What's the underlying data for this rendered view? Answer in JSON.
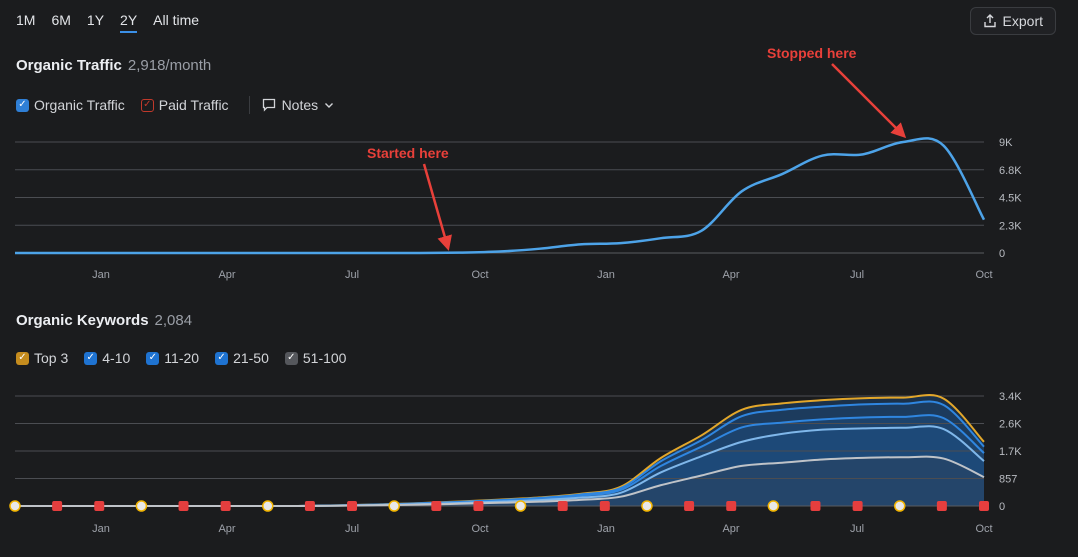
{
  "range_tabs": [
    {
      "label": "1M",
      "active": false
    },
    {
      "label": "6M",
      "active": false
    },
    {
      "label": "1Y",
      "active": false
    },
    {
      "label": "2Y",
      "active": true
    },
    {
      "label": "All time",
      "active": false
    }
  ],
  "export_label": "Export",
  "traffic": {
    "title": "Organic Traffic",
    "metric": "2,918/month",
    "legend": [
      {
        "label": "Organic Traffic",
        "color": "#2f7fd6"
      },
      {
        "label": "Paid Traffic",
        "color": "#c0392b"
      }
    ],
    "notes_label": "Notes",
    "annotations": {
      "started": "Started here",
      "stopped": "Stopped here"
    }
  },
  "keywords": {
    "title": "Organic Keywords",
    "metric": "2,084",
    "legend": [
      {
        "label": "Top 3",
        "color": "#e3a72a"
      },
      {
        "label": "4-10",
        "color": "#1f73d1"
      },
      {
        "label": "11-20",
        "color": "#1f73d1"
      },
      {
        "label": "21-50",
        "color": "#1f73d1"
      },
      {
        "label": "51-100",
        "color": "#6b6d72"
      }
    ]
  },
  "chart_data": [
    {
      "type": "line",
      "title": "Organic Traffic",
      "x_ticks": [
        "Jan",
        "Apr",
        "Jul",
        "Oct",
        "Jan",
        "Apr",
        "Jul",
        "Oct"
      ],
      "y_ticks": [
        "9K",
        "6.8K",
        "4.5K",
        "2.3K",
        "0"
      ],
      "ylim": [
        0,
        9000
      ],
      "series": [
        {
          "name": "Organic Traffic",
          "color": "#4da3e8",
          "x": [
            0,
            1,
            2,
            3,
            4,
            5,
            6,
            7,
            8,
            9,
            10,
            11,
            12,
            13,
            14,
            15,
            16,
            17,
            18,
            19,
            20,
            21,
            22,
            23,
            24
          ],
          "y": [
            0,
            0,
            0,
            0,
            0,
            0,
            0,
            0,
            0,
            0,
            0,
            30,
            120,
            350,
            700,
            800,
            1200,
            1800,
            5000,
            6400,
            7900,
            8000,
            9000,
            8700,
            2700
          ]
        }
      ]
    },
    {
      "type": "area",
      "title": "Organic Keywords",
      "x_ticks": [
        "Jan",
        "Apr",
        "Jul",
        "Oct",
        "Jan",
        "Apr",
        "Jul",
        "Oct"
      ],
      "y_ticks": [
        "3.4K",
        "2.6K",
        "1.7K",
        "857",
        "0"
      ],
      "ylim": [
        0,
        3430
      ],
      "x": [
        0,
        1,
        2,
        3,
        4,
        5,
        6,
        7,
        8,
        9,
        10,
        11,
        12,
        13,
        14,
        15,
        16,
        17,
        18,
        19,
        20,
        21,
        22,
        23,
        24
      ],
      "series": [
        {
          "name": "Top 3",
          "color": "#e3a72a",
          "values": [
            0,
            0,
            0,
            0,
            0,
            0,
            0,
            0,
            20,
            50,
            90,
            140,
            200,
            270,
            380,
            600,
            1500,
            2200,
            3000,
            3200,
            3300,
            3360,
            3380,
            3350,
            2000
          ]
        },
        {
          "name": "4-10",
          "color": "#2f86e0",
          "values": [
            0,
            0,
            0,
            0,
            0,
            0,
            0,
            0,
            18,
            45,
            85,
            130,
            185,
            255,
            360,
            560,
            1400,
            2050,
            2800,
            3000,
            3100,
            3170,
            3190,
            3150,
            1850
          ]
        },
        {
          "name": "11-20",
          "color": "#2f86e0",
          "values": [
            0,
            0,
            0,
            0,
            0,
            0,
            0,
            0,
            15,
            40,
            75,
            115,
            165,
            225,
            320,
            500,
            1250,
            1850,
            2450,
            2600,
            2700,
            2760,
            2780,
            2740,
            1650
          ]
        },
        {
          "name": "21-50",
          "color": "#7fb7ea",
          "values": [
            0,
            0,
            0,
            0,
            0,
            0,
            0,
            0,
            12,
            32,
            60,
            95,
            135,
            185,
            260,
            410,
            1050,
            1550,
            2000,
            2250,
            2380,
            2420,
            2440,
            2400,
            1400
          ]
        },
        {
          "name": "51-100",
          "color": "#bfc3c8",
          "values": [
            0,
            0,
            0,
            0,
            0,
            0,
            0,
            0,
            8,
            22,
            42,
            70,
            100,
            135,
            190,
            290,
            650,
            950,
            1250,
            1350,
            1450,
            1500,
            1520,
            1480,
            900
          ]
        }
      ]
    }
  ]
}
